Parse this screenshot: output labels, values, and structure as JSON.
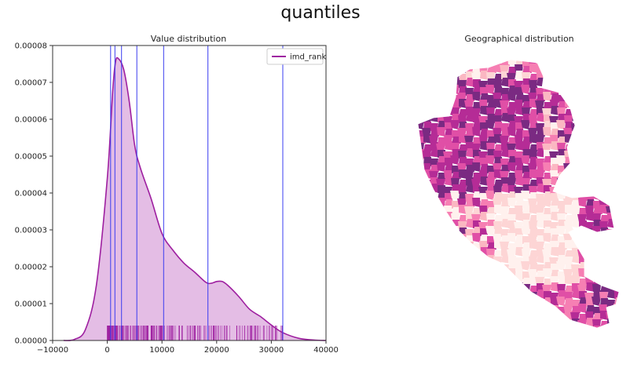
{
  "figure": {
    "title": "quantiles"
  },
  "chart_data": [
    {
      "type": "area",
      "title": "Value distribution",
      "xlabel": "",
      "ylabel": "",
      "xlim": [
        -10000,
        40000
      ],
      "ylim": [
        0,
        8e-05
      ],
      "xticks": [
        -10000,
        0,
        10000,
        20000,
        30000,
        40000
      ],
      "xtick_labels": [
        "−10000",
        "0",
        "10000",
        "20000",
        "30000",
        "40000"
      ],
      "yticks": [
        0,
        1e-05,
        2e-05,
        3e-05,
        4e-05,
        5e-05,
        6e-05,
        7e-05,
        8e-05
      ],
      "ytick_labels": [
        "0.00000",
        "0.00001",
        "0.00002",
        "0.00003",
        "0.00004",
        "0.00005",
        "0.00006",
        "0.00007",
        "0.00008"
      ],
      "legend": {
        "label": "imd_rank",
        "placement": "top-right"
      },
      "series": [
        {
          "name": "imd_rank",
          "x": [
            -8000,
            -6000,
            -4000,
            -2000,
            0,
            1000,
            1500,
            2000,
            3000,
            4000,
            5000,
            6000,
            8000,
            10000,
            12000,
            14000,
            16000,
            18000,
            19000,
            20000,
            21000,
            22000,
            24000,
            26000,
            28000,
            30000,
            32000,
            35000,
            38000,
            40000
          ],
          "y": [
            0,
            3e-07,
            3e-06,
            1.5e-05,
            4.4e-05,
            6.8e-05,
            7.55e-05,
            7.65e-05,
            7.35e-05,
            6.5e-05,
            5.3e-05,
            4.7e-05,
            3.85e-05,
            2.9e-05,
            2.45e-05,
            2.1e-05,
            1.85e-05,
            1.58e-05,
            1.55e-05,
            1.6e-05,
            1.6e-05,
            1.5e-05,
            1.2e-05,
            8.5e-06,
            6.5e-06,
            4.2e-06,
            2.2e-06,
            6e-07,
            1e-07,
            0
          ]
        }
      ],
      "quantile_breaks": [
        600,
        1400,
        2600,
        5400,
        10300,
        18400,
        32100
      ],
      "rug_range": [
        0,
        32500
      ]
    },
    {
      "type": "map",
      "title": "Geographical distribution"
    }
  ],
  "colors": {
    "line": "#9e1fa0",
    "fill": "#e4bde5",
    "quantile_line": "#3a3cf0",
    "rug": "#9e1fa0",
    "map_classes": [
      "#fff1ee",
      "#fdd5d5",
      "#fbb7c2",
      "#f67fb3",
      "#e04fa6",
      "#b52c96",
      "#7a2a82"
    ]
  }
}
